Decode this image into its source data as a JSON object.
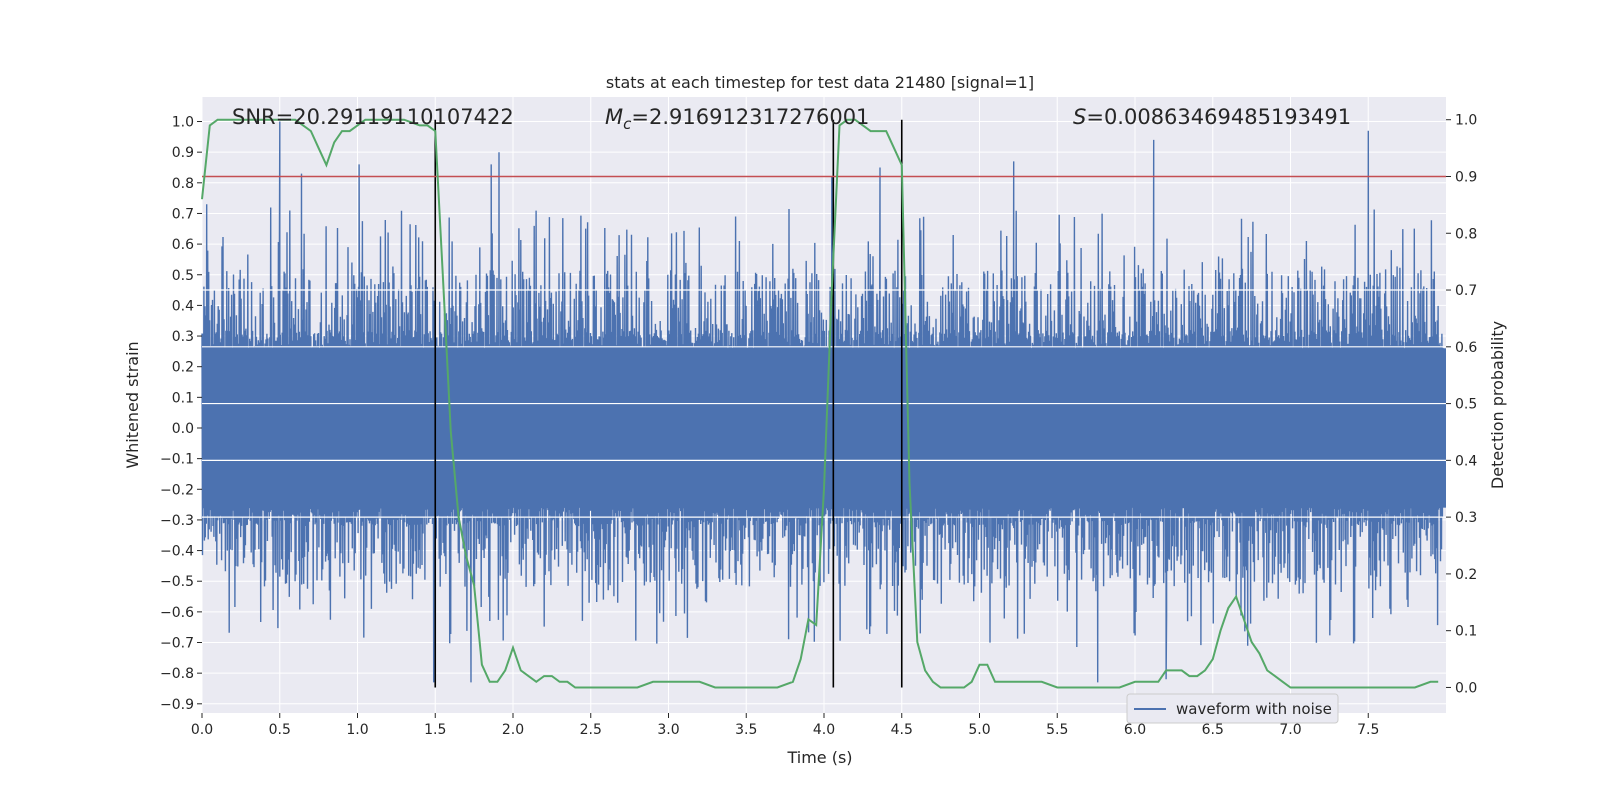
{
  "chart_data": {
    "type": "line",
    "title": "stats at each timestep for test data 21480 [signal=1]",
    "xlabel": "Time (s)",
    "ylabel_left": "Whitened strain",
    "ylabel_right": "Detection probability",
    "xlim": [
      0.0,
      8.0
    ],
    "ylim_left": [
      -0.93,
      1.08
    ],
    "ylim_right": [
      -0.045,
      1.04
    ],
    "x_ticks": [
      "0.0",
      "0.5",
      "1.0",
      "1.5",
      "2.0",
      "2.5",
      "3.0",
      "3.5",
      "4.0",
      "4.5",
      "5.0",
      "5.5",
      "6.0",
      "6.5",
      "7.0",
      "7.5"
    ],
    "y_ticks_left": [
      "1.0",
      "0.9",
      "0.8",
      "0.7",
      "0.6",
      "0.5",
      "0.4",
      "0.3",
      "0.2",
      "0.1",
      "0.0",
      "−0.1",
      "−0.2",
      "−0.3",
      "−0.4",
      "−0.5",
      "−0.6",
      "−0.7",
      "−0.8",
      "−0.9"
    ],
    "y_ticks_right": [
      "1.0",
      "0.9",
      "0.8",
      "0.7",
      "0.6",
      "0.5",
      "0.4",
      "0.3",
      "0.2",
      "0.1",
      "0.0"
    ],
    "annotations": {
      "snr": "SNR=20.29119110107422",
      "mc_symbol": "M",
      "mc_sub": "c",
      "mc_value": "=2.916912317276001",
      "s_symbol": "S",
      "s_value": "=0.00863469485193491"
    },
    "legend": {
      "label": "waveform with noise",
      "position": "bottom-right"
    },
    "threshold": {
      "value": 0.9,
      "axis": "right",
      "color": "#c44e52"
    },
    "vertical_lines": [
      1.5,
      4.06,
      4.5
    ],
    "series": [
      {
        "name": "waveform with noise",
        "axis": "left",
        "color": "#4c72b0",
        "style": "dense noise",
        "peaks": [
          {
            "t": 0.03,
            "v": 0.73
          },
          {
            "t": 0.5,
            "v": 1.0
          },
          {
            "t": 0.64,
            "v": 0.83
          },
          {
            "t": 1.01,
            "v": 0.86
          },
          {
            "t": 1.86,
            "v": 0.86
          },
          {
            "t": 1.91,
            "v": 0.9
          },
          {
            "t": 4.05,
            "v": 0.82
          },
          {
            "t": 4.36,
            "v": 0.85
          },
          {
            "t": 5.22,
            "v": 0.87
          },
          {
            "t": 6.12,
            "v": 0.94
          },
          {
            "t": 7.5,
            "v": 0.97
          },
          {
            "t": 1.49,
            "v": -0.83
          },
          {
            "t": 1.73,
            "v": -0.83
          },
          {
            "t": 5.76,
            "v": -0.83
          },
          {
            "t": 6.2,
            "v": -0.82
          }
        ]
      },
      {
        "name": "detection probability",
        "axis": "right",
        "color": "#55a868",
        "x": [
          0.0,
          0.05,
          0.1,
          0.2,
          0.3,
          0.4,
          0.5,
          0.6,
          0.65,
          0.7,
          0.75,
          0.8,
          0.85,
          0.9,
          0.95,
          1.0,
          1.05,
          1.1,
          1.15,
          1.2,
          1.3,
          1.4,
          1.45,
          1.5,
          1.55,
          1.6,
          1.65,
          1.7,
          1.75,
          1.8,
          1.85,
          1.9,
          1.95,
          2.0,
          2.05,
          2.1,
          2.15,
          2.2,
          2.25,
          2.3,
          2.35,
          2.4,
          2.5,
          2.6,
          2.7,
          2.8,
          2.9,
          3.0,
          3.1,
          3.2,
          3.3,
          3.4,
          3.5,
          3.6,
          3.7,
          3.8,
          3.85,
          3.9,
          3.95,
          4.0,
          4.05,
          4.1,
          4.15,
          4.2,
          4.25,
          4.3,
          4.35,
          4.4,
          4.45,
          4.5,
          4.55,
          4.6,
          4.65,
          4.7,
          4.75,
          4.8,
          4.85,
          4.9,
          4.95,
          5.0,
          5.05,
          5.1,
          5.15,
          5.2,
          5.25,
          5.3,
          5.35,
          5.4,
          5.5,
          5.6,
          5.7,
          5.8,
          5.9,
          6.0,
          6.05,
          6.1,
          6.15,
          6.2,
          6.25,
          6.3,
          6.35,
          6.4,
          6.45,
          6.5,
          6.55,
          6.6,
          6.65,
          6.7,
          6.75,
          6.8,
          6.85,
          6.9,
          6.95,
          7.0,
          7.1,
          7.2,
          7.4,
          7.6,
          7.8,
          7.9,
          7.95
        ],
        "y": [
          0.86,
          0.99,
          1.0,
          1.0,
          1.0,
          1.0,
          1.0,
          1.0,
          0.99,
          0.98,
          0.95,
          0.92,
          0.96,
          0.98,
          0.98,
          0.99,
          1.0,
          1.0,
          1.0,
          1.0,
          1.0,
          0.99,
          0.99,
          0.98,
          0.72,
          0.45,
          0.3,
          0.23,
          0.18,
          0.04,
          0.01,
          0.01,
          0.03,
          0.07,
          0.03,
          0.02,
          0.01,
          0.02,
          0.02,
          0.01,
          0.01,
          0.0,
          0.0,
          0.0,
          0.0,
          0.0,
          0.01,
          0.01,
          0.01,
          0.01,
          0.0,
          0.0,
          0.0,
          0.0,
          0.0,
          0.01,
          0.05,
          0.12,
          0.11,
          0.35,
          0.7,
          0.99,
          1.0,
          1.0,
          0.99,
          0.98,
          0.98,
          0.98,
          0.95,
          0.92,
          0.36,
          0.08,
          0.03,
          0.01,
          0.0,
          0.0,
          0.0,
          0.0,
          0.01,
          0.04,
          0.04,
          0.01,
          0.01,
          0.01,
          0.01,
          0.01,
          0.01,
          0.01,
          0.0,
          0.0,
          0.0,
          0.0,
          0.0,
          0.01,
          0.01,
          0.01,
          0.01,
          0.03,
          0.03,
          0.03,
          0.02,
          0.02,
          0.03,
          0.05,
          0.1,
          0.14,
          0.16,
          0.12,
          0.08,
          0.06,
          0.03,
          0.02,
          0.01,
          0.0,
          0.0,
          0.0,
          0.0,
          0.0,
          0.0,
          0.01,
          0.01
        ]
      }
    ]
  }
}
